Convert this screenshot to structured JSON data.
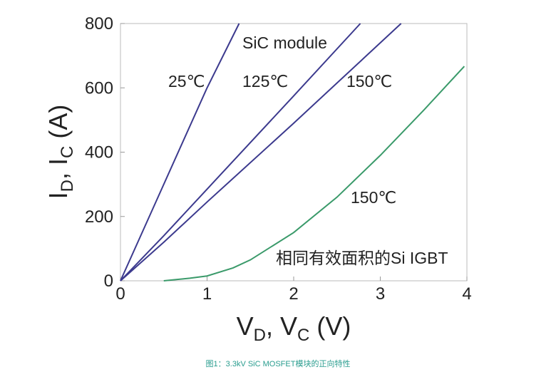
{
  "chart_data": {
    "type": "line",
    "xlim": [
      0,
      4
    ],
    "xticks": [
      0,
      1,
      2,
      3,
      4
    ],
    "ylim": [
      0,
      800
    ],
    "yticks": [
      0,
      200,
      400,
      600,
      800
    ],
    "x_label": [
      "V",
      "D",
      ", V",
      "C",
      " (V)"
    ],
    "y_label": [
      "I",
      "D",
      ", I",
      "C",
      " (A)"
    ],
    "annotations": [
      "SiC module",
      "25℃",
      "125℃",
      "150℃",
      "150℃",
      "相同有效面积的Si IGBT"
    ],
    "caption": "图1：3.3kV SiC MOSFET模块的正向特性",
    "series": [
      {
        "color": "#3c3a8e",
        "x": [
          0,
          0.2,
          0.5,
          1.0,
          1.37
        ],
        "values": [
          0,
          120,
          300,
          600,
          800
        ]
      },
      {
        "color": "#3c3a8e",
        "x": [
          0,
          0.5,
          1.0,
          2.0,
          2.77
        ],
        "values": [
          0,
          140,
          285,
          575,
          800
        ]
      },
      {
        "color": "#3c3a8e",
        "x": [
          0,
          0.5,
          1.0,
          2.0,
          3.24
        ],
        "values": [
          0,
          120,
          245,
          490,
          800
        ]
      },
      {
        "color": "#3a9a6a",
        "x": [
          0.5,
          0.8,
          1.0,
          1.3,
          1.5,
          2.0,
          2.5,
          3.0,
          3.5,
          3.97
        ],
        "values": [
          0,
          8,
          15,
          40,
          65,
          150,
          260,
          390,
          530,
          667
        ]
      }
    ]
  }
}
